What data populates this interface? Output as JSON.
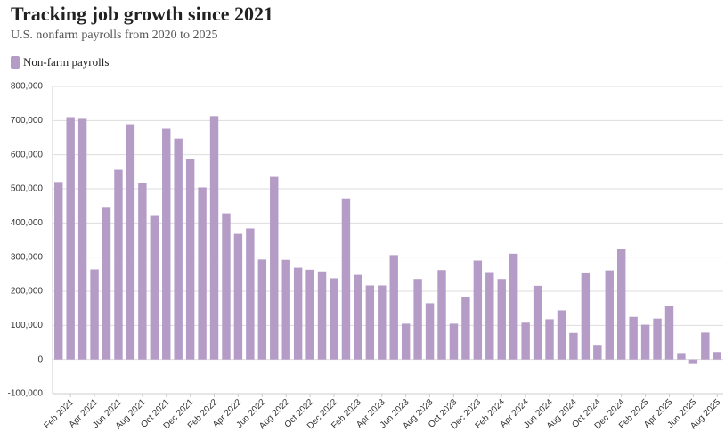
{
  "chart_data": {
    "type": "bar",
    "title": "Tracking job growth since 2021",
    "subtitle": "U.S. nonfarm payrolls from 2020 to 2025",
    "categories": [
      null,
      "Feb 2021",
      null,
      "Apr 2021",
      null,
      "Jun 2021",
      null,
      "Aug 2021",
      null,
      "Oct 2021",
      null,
      "Dec 2021",
      null,
      "Feb 2022",
      null,
      "Apr 2022",
      null,
      "Jun 2022",
      null,
      "Aug 2022",
      null,
      "Oct 2022",
      null,
      "Dec 2022",
      null,
      "Feb 2023",
      null,
      "Apr 2023",
      null,
      "Jun 2023",
      null,
      "Aug 2023",
      null,
      "Oct 2023",
      null,
      "Dec 2023",
      null,
      "Feb 2024",
      null,
      "Apr 2024",
      null,
      "Jun 2024",
      null,
      "Aug 2024",
      null,
      "Oct 2024",
      null,
      "Dec 2024",
      null,
      "Feb 2025",
      null,
      "Apr 2025",
      null,
      "Jun 2025",
      null,
      "Aug 2025"
    ],
    "series": [
      {
        "name": "Non-farm payrolls",
        "color": "#b59cc6",
        "values": [
          520000,
          710000,
          705000,
          264000,
          447000,
          556000,
          689000,
          517000,
          423000,
          676000,
          647000,
          588000,
          504000,
          713000,
          428000,
          368000,
          384000,
          293000,
          535000,
          292000,
          269000,
          263000,
          258000,
          238000,
          472000,
          248000,
          217000,
          217000,
          306000,
          105000,
          236000,
          165000,
          262000,
          105000,
          182000,
          290000,
          256000,
          236000,
          310000,
          108000,
          216000,
          118000,
          144000,
          78000,
          255000,
          43000,
          261000,
          323000,
          125000,
          102000,
          120000,
          158000,
          19000,
          -13000,
          79000,
          22000
        ]
      }
    ],
    "ylim": [
      -100000,
      800000
    ],
    "yticks": [
      {
        "value": -100000,
        "label": "-100,000"
      },
      0,
      {
        "value": 100000,
        "label": "100,000"
      },
      {
        "value": 200000,
        "label": "200,000"
      },
      {
        "value": 300000,
        "label": "300,000"
      },
      {
        "value": 400000,
        "label": "400,000"
      },
      {
        "value": 500000,
        "label": "500,000"
      },
      {
        "value": 600000,
        "label": "600,000"
      },
      {
        "value": 700000,
        "label": "700,000"
      },
      {
        "value": 800000,
        "label": "800,000"
      }
    ],
    "grid": true
  }
}
